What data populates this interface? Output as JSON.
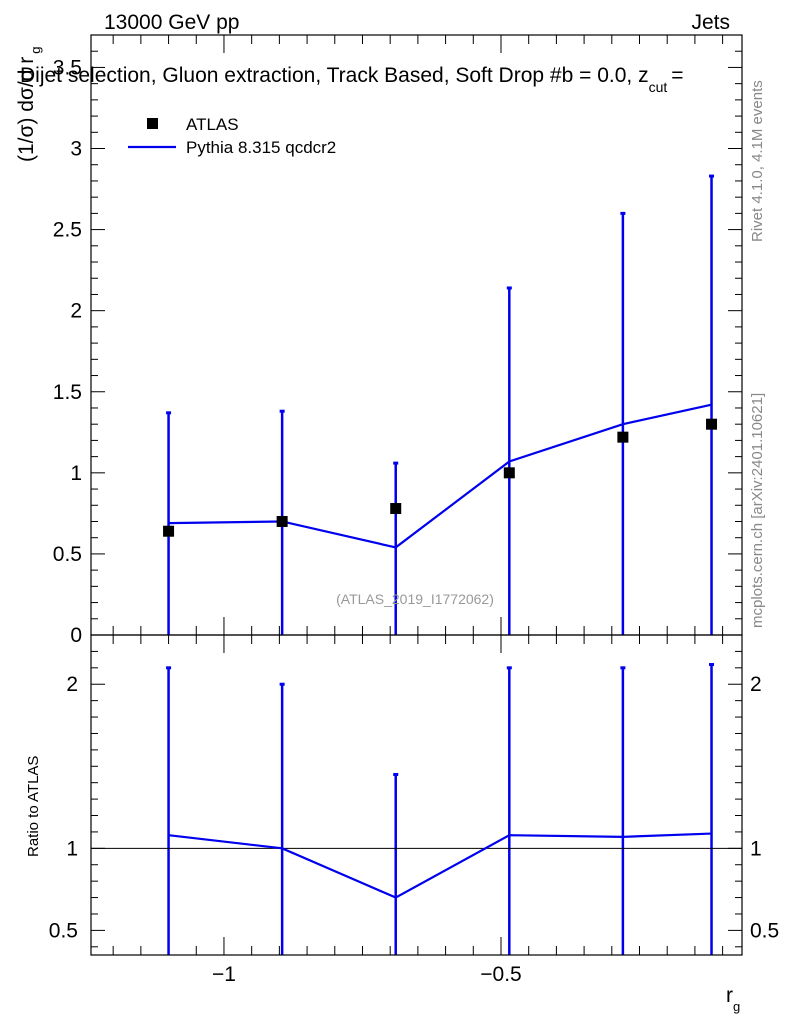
{
  "header": {
    "left_label": "13000 GeV pp",
    "right_label": "Jets",
    "subtitle": "Dijet selection, Gluon extraction, Track Based, Soft Drop #b = 0.0, z",
    "subtitle_sub": "cut",
    "subtitle_tail": "="
  },
  "side_labels": {
    "rivet": "Rivet 4.1.0,  4.1M events",
    "mcplots": "mcplots.cern.ch [arXiv:2401.10621]"
  },
  "watermark": "(ATLAS_2019_I1772062)",
  "colors": {
    "data": "#000000",
    "mc": "#0000ee",
    "axis": "#000000",
    "side_text": "#888888"
  },
  "chart_data": [
    {
      "type": "scatter",
      "panel": "main",
      "ylabel": "(1/σ) dσ/d r",
      "ylabel_sub": "g",
      "xlim": [
        -1.24,
        -0.065
      ],
      "ylim": [
        0,
        3.7
      ],
      "yticks": [
        0,
        0.5,
        1,
        1.5,
        2,
        2.5,
        3,
        3.5
      ],
      "ytick_labels": [
        "0",
        "0.5",
        "1",
        "1.5",
        "2",
        "2.5",
        "3",
        "3.5"
      ],
      "legend": [
        {
          "label": "ATLAS",
          "kind": "marker"
        },
        {
          "label": "Pythia 8.315 qcdcr2",
          "kind": "line"
        }
      ],
      "x": [
        -1.1,
        -0.895,
        -0.69,
        -0.485,
        -0.28,
        -0.12
      ],
      "series": [
        {
          "name": "ATLAS",
          "values": [
            0.64,
            0.7,
            0.78,
            1.0,
            1.22,
            1.3
          ]
        },
        {
          "name": "Pythia 8.315 qcdcr2",
          "values": [
            0.69,
            0.7,
            0.54,
            1.07,
            1.3,
            1.42
          ],
          "err_high": [
            1.37,
            1.38,
            1.06,
            2.14,
            2.6,
            2.83
          ]
        }
      ]
    },
    {
      "type": "line",
      "panel": "ratio",
      "ylabel": "Ratio to ATLAS",
      "xlabel": "r",
      "xlabel_sub": "g",
      "xlim": [
        -1.24,
        -0.065
      ],
      "ylim": [
        0.35,
        2.3
      ],
      "yticks": [
        0.5,
        1,
        2
      ],
      "ytick_labels": [
        "0.5",
        "1",
        "2"
      ],
      "xticks": [
        -1,
        -0.5
      ],
      "xtick_labels": [
        "−1",
        "−0.5"
      ],
      "x": [
        -1.1,
        -0.895,
        -0.69,
        -0.485,
        -0.28,
        -0.12
      ],
      "reference": 1,
      "series": [
        {
          "name": "Pythia 8.315 qcdcr2",
          "values": [
            1.08,
            1.0,
            0.7,
            1.08,
            1.07,
            1.09
          ],
          "err_high": [
            2.1,
            2.0,
            1.45,
            2.1,
            2.1,
            2.12
          ]
        }
      ]
    }
  ]
}
